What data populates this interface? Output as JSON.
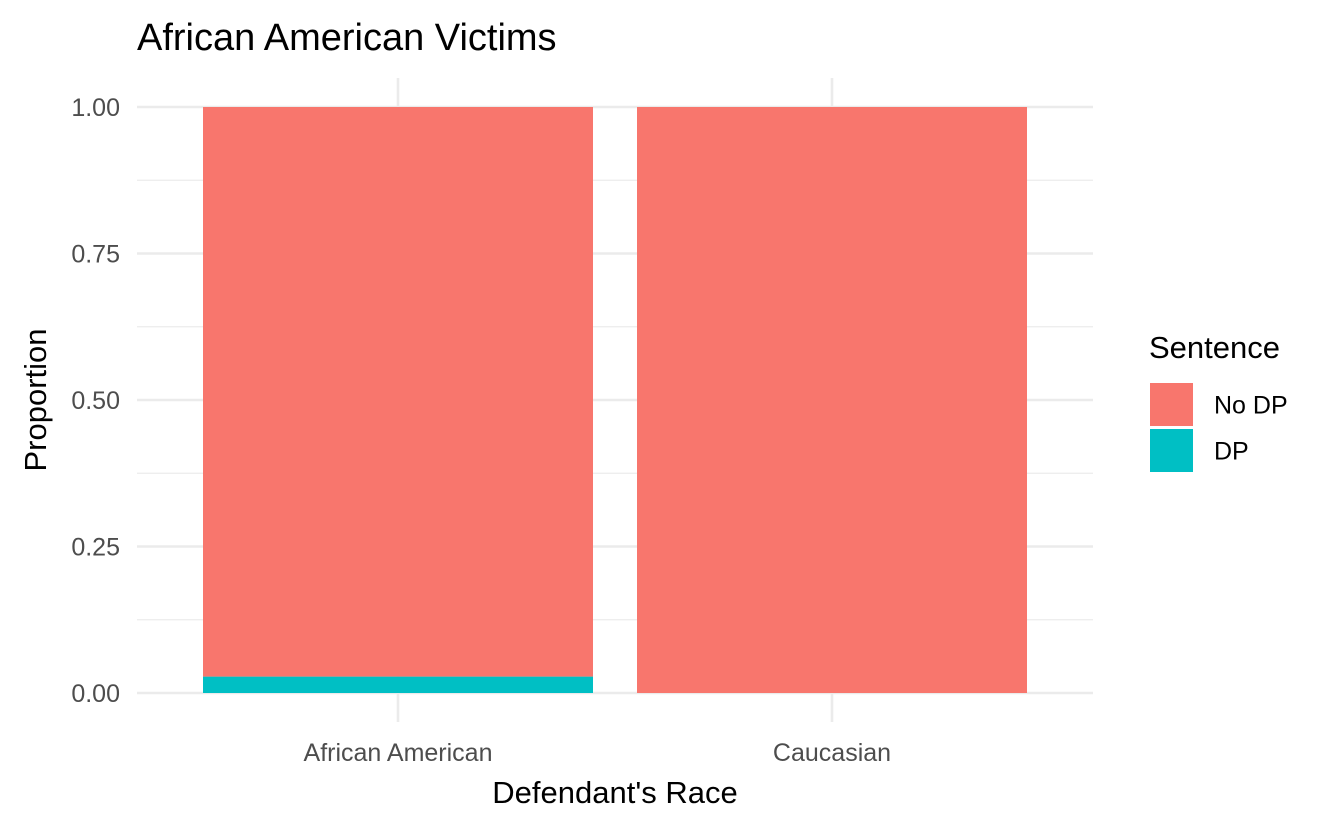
{
  "chart_data": {
    "type": "bar",
    "stacked": true,
    "title": "African American Victims",
    "xlabel": "Defendant's Race",
    "ylabel": "Proportion",
    "categories": [
      "African American",
      "Caucasian"
    ],
    "series": [
      {
        "name": "No DP",
        "color": "#F8766D",
        "values": [
          0.972,
          1.0
        ]
      },
      {
        "name": "DP",
        "color": "#00BFC4",
        "values": [
          0.028,
          0.0
        ]
      }
    ],
    "ylim": [
      0,
      1
    ],
    "yticks": [
      "0.00",
      "0.25",
      "0.50",
      "0.75",
      "1.00"
    ],
    "grid": true,
    "legend": {
      "title": "Sentence",
      "position": "right",
      "items": [
        "No DP",
        "DP"
      ]
    }
  }
}
